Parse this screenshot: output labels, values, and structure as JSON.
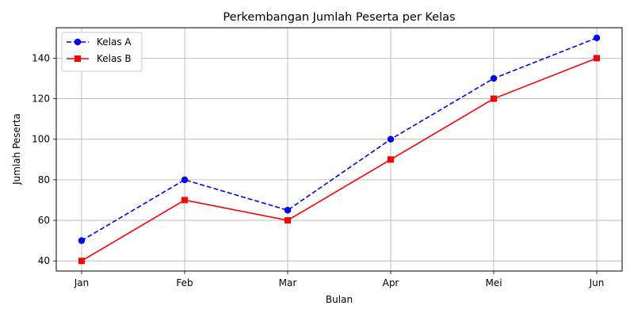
{
  "chart_data": {
    "type": "line",
    "title": "Perkembangan Jumlah Peserta per Kelas",
    "xlabel": "Bulan",
    "ylabel": "Jumlah Peserta",
    "categories": [
      "Jan",
      "Feb",
      "Mar",
      "Apr",
      "Mei",
      "Jun"
    ],
    "ylim": [
      35,
      155
    ],
    "yticks": [
      40,
      60,
      80,
      100,
      120,
      140
    ],
    "grid": true,
    "legend_position": "top-left",
    "series": [
      {
        "name": "Kelas A",
        "values": [
          50,
          80,
          65,
          100,
          130,
          150
        ],
        "color": "#0000ff",
        "linestyle": "dashed",
        "marker": "circle"
      },
      {
        "name": "Kelas B",
        "values": [
          40,
          70,
          60,
          90,
          120,
          140
        ],
        "color": "#ff0000",
        "linestyle": "solid",
        "marker": "square"
      }
    ]
  }
}
